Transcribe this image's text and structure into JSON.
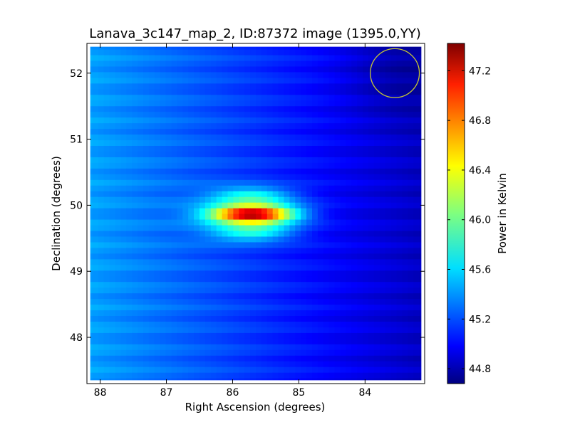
{
  "chart_data": {
    "type": "heatmap",
    "title": "Lanava_3c147_map_2, ID:87372 image (1395.0,YY)",
    "xlabel": "Right Ascension (degrees)",
    "ylabel": "Declination (degrees)",
    "colorbar_label": "Power in Kelvin",
    "xlim": [
      88.2,
      83.1
    ],
    "ylim": [
      47.3,
      52.45
    ],
    "x_ticks": [
      88,
      87,
      86,
      85,
      84
    ],
    "y_ticks": [
      48,
      49,
      50,
      51,
      52
    ],
    "colorbar_range": [
      44.68,
      47.42
    ],
    "colorbar_ticks": [
      44.8,
      45.2,
      45.6,
      46.0,
      46.4,
      46.8,
      47.2
    ],
    "colormap": "jet",
    "background_level": 45.15,
    "peak": {
      "ra": 85.7,
      "dec": 49.87,
      "value": 47.42
    },
    "beam_circle": {
      "ra": 83.55,
      "dec": 52.0,
      "radius_deg": 0.37,
      "color": "#c8c832"
    },
    "grid": false
  }
}
